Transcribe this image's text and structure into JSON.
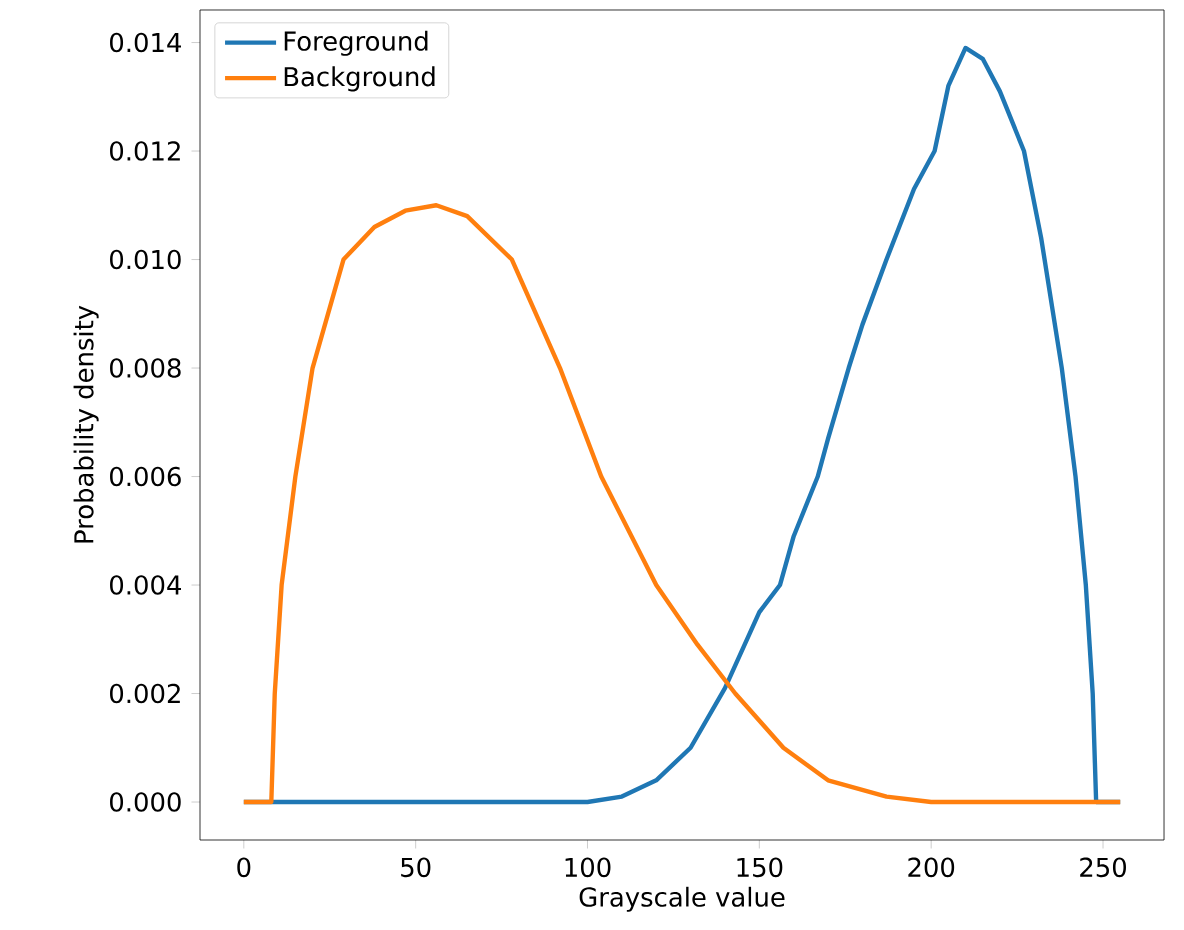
{
  "chart_data": {
    "type": "line",
    "xlabel": "Grayscale value",
    "ylabel": "Probability density",
    "xlim": [
      -12.75,
      267.75
    ],
    "ylim": [
      -0.0007,
      0.0146
    ],
    "xticks": [
      0,
      50,
      100,
      150,
      200,
      250
    ],
    "yticks": [
      {
        "value": 0,
        "label": "0.000"
      },
      {
        "value": 0.002,
        "label": "0.002"
      },
      {
        "value": 0.004,
        "label": "0.004"
      },
      {
        "value": 0.006,
        "label": "0.006"
      },
      {
        "value": 0.008,
        "label": "0.008"
      },
      {
        "value": 0.01,
        "label": "0.010"
      },
      {
        "value": 0.012,
        "label": "0.012"
      },
      {
        "value": 0.014,
        "label": "0.014"
      }
    ],
    "legend": "top left",
    "grid": false,
    "marker": "none",
    "line_style": "solid",
    "series": [
      {
        "name": "Foreground",
        "color": "#1f77b4",
        "x": [
          0,
          100,
          110,
          120,
          130,
          140,
          150,
          156,
          160,
          167,
          170,
          176,
          180,
          187,
          195,
          201,
          205,
          210,
          215,
          220,
          227,
          232,
          238,
          242,
          245,
          247,
          248,
          255
        ],
        "values": [
          0,
          0,
          0.0001,
          0.0004,
          0.001,
          0.0021,
          0.0035,
          0.004,
          0.0049,
          0.006,
          0.0067,
          0.008,
          0.0088,
          0.01,
          0.0113,
          0.012,
          0.0132,
          0.0139,
          0.0137,
          0.0131,
          0.012,
          0.0104,
          0.008,
          0.006,
          0.004,
          0.002,
          0,
          0
        ]
      },
      {
        "name": "Background",
        "color": "#ff7f0e",
        "x": [
          0,
          8,
          9,
          11,
          15,
          20,
          29,
          38,
          47,
          56,
          65,
          78,
          92,
          104,
          120,
          132,
          143,
          157,
          170,
          187,
          200,
          255
        ],
        "values": [
          0,
          0,
          0.002,
          0.004,
          0.006,
          0.008,
          0.01,
          0.0106,
          0.0109,
          0.011,
          0.0108,
          0.01,
          0.008,
          0.006,
          0.004,
          0.0029,
          0.002,
          0.001,
          0.0004,
          0.0001,
          0,
          0
        ]
      }
    ]
  }
}
